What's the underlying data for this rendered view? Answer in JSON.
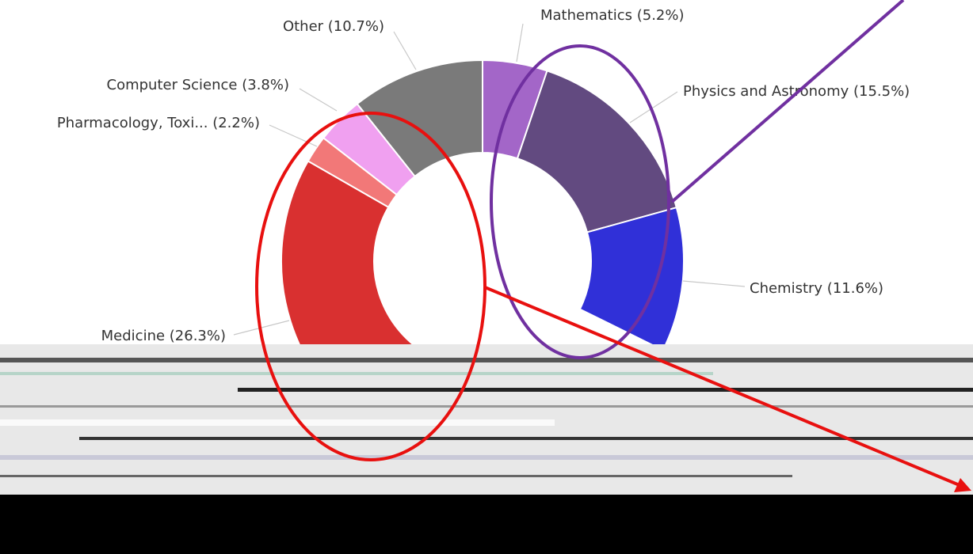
{
  "chart_data": {
    "type": "donut",
    "labels": [
      "Mathematics (5.2%)",
      "Physics and Astronomy (15.5%)",
      "Chemistry (11.6%)",
      "Medicine (26.3%)",
      "Pharmacology, Toxi... (2.2%)",
      "Computer Science (3.8%)",
      "Other (10.7%)"
    ],
    "values": [
      5.2,
      15.5,
      11.6,
      26.3,
      2.2,
      3.8,
      10.7
    ],
    "colors": [
      "#a366c8",
      "#624a80",
      "#3030d8",
      "#d93030",
      "#f27878",
      "#f0a0f0",
      "#7a7a7a"
    ]
  }
}
